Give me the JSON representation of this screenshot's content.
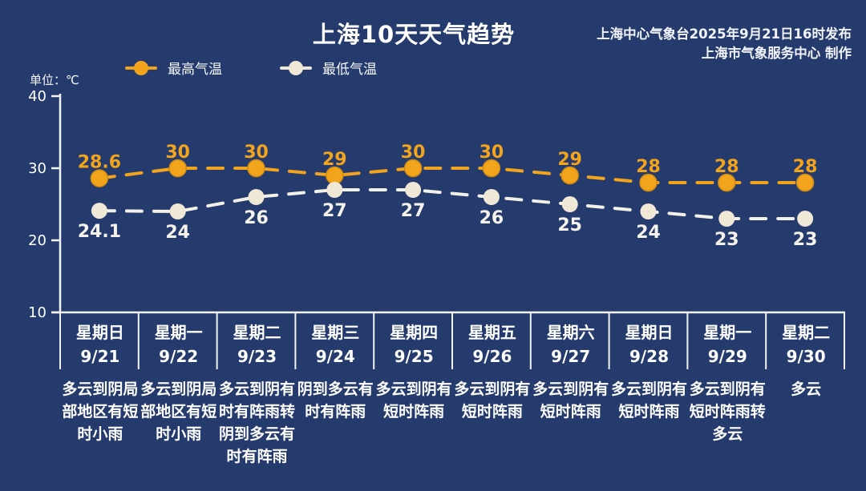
{
  "title": "上海10天天气趋势",
  "source": {
    "line1": "上海中心气象台2025年9月21日16时发布",
    "line2": "上海市气象服务中心 制作"
  },
  "unit_label": "单位：℃",
  "legend": [
    {
      "label": "最高气温",
      "color": "#F2A41C"
    },
    {
      "label": "最低气温",
      "color": "#F0E8D7"
    }
  ],
  "colors": {
    "background": "#253B6D",
    "high_series": "#F2A41C",
    "high_point_stroke": "#D18C10",
    "low_series": "#F3F0E8",
    "low_point": "#F0E8D7",
    "low_label": "#F6F3EA",
    "axis": "#F2F4F8",
    "text": "#FFFFFF"
  },
  "chart_data": {
    "type": "line",
    "title": "上海10天天气趋势",
    "ylabel": "℃",
    "ylim": [
      10,
      40
    ],
    "yticks": [
      40,
      30,
      20,
      10
    ],
    "grid": false,
    "legend_position": "top",
    "line_style": "dashed",
    "categories": [
      "9/21",
      "9/22",
      "9/23",
      "9/24",
      "9/25",
      "9/26",
      "9/27",
      "9/28",
      "9/29",
      "9/30"
    ],
    "series": [
      {
        "name": "最高气温",
        "values": [
          28.6,
          30,
          30,
          29,
          30,
          30,
          29,
          28,
          28,
          28
        ]
      },
      {
        "name": "最低气温",
        "values": [
          24.1,
          24,
          26,
          27,
          27,
          26,
          25,
          24,
          23,
          23
        ]
      }
    ]
  },
  "days": [
    {
      "weekday": "星期日",
      "date": "9/21",
      "weather": "多云到阴局部地区有短时小雨"
    },
    {
      "weekday": "星期一",
      "date": "9/22",
      "weather": "多云到阴局部地区有短时小雨"
    },
    {
      "weekday": "星期二",
      "date": "9/23",
      "weather": "多云到阴有时有阵雨转阴到多云有时有阵雨"
    },
    {
      "weekday": "星期三",
      "date": "9/24",
      "weather": "阴到多云有时有阵雨"
    },
    {
      "weekday": "星期四",
      "date": "9/25",
      "weather": "多云到阴有短时阵雨"
    },
    {
      "weekday": "星期五",
      "date": "9/26",
      "weather": "多云到阴有短时阵雨"
    },
    {
      "weekday": "星期六",
      "date": "9/27",
      "weather": "多云到阴有短时阵雨"
    },
    {
      "weekday": "星期日",
      "date": "9/28",
      "weather": "多云到阴有短时阵雨"
    },
    {
      "weekday": "星期一",
      "date": "9/29",
      "weather": "多云到阴有短时阵雨转多云"
    },
    {
      "weekday": "星期二",
      "date": "9/30",
      "weather": "多云"
    }
  ]
}
